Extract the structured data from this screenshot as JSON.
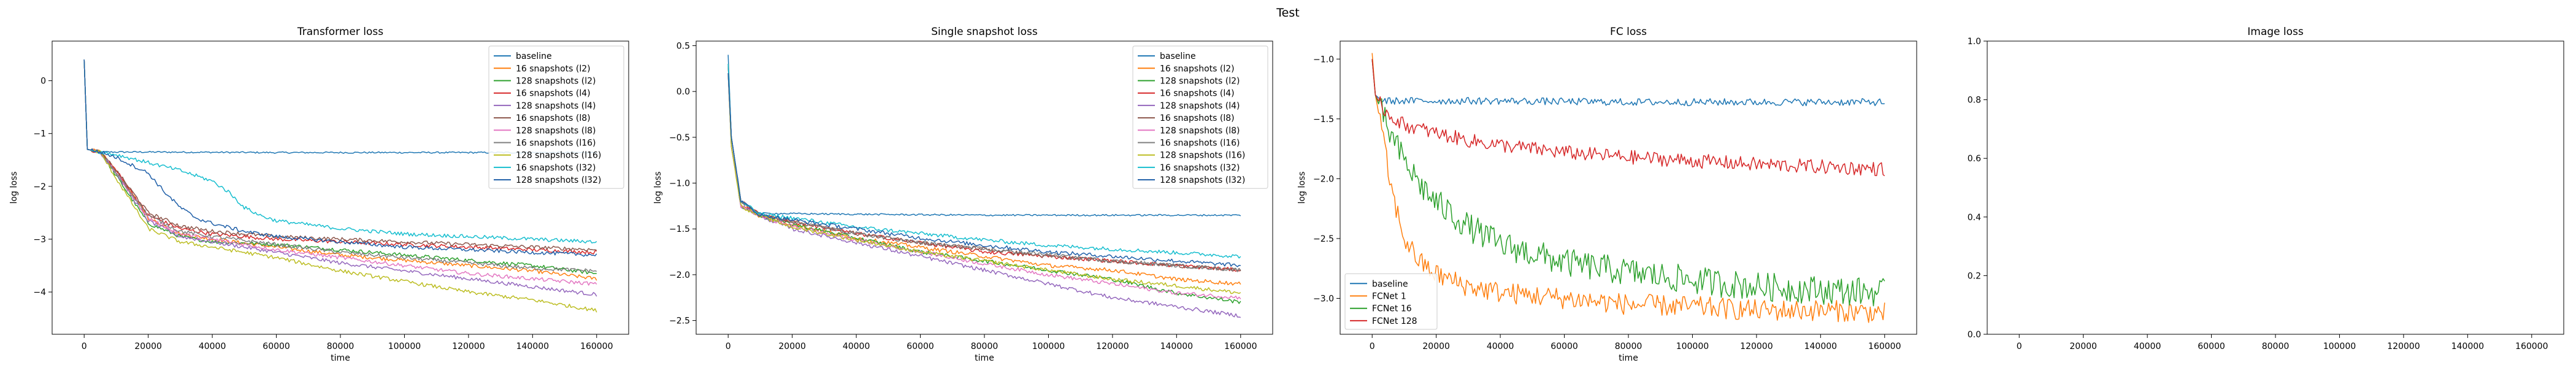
{
  "figure": {
    "title": "Test"
  },
  "colors": [
    "#1f77b4",
    "#ff7f0e",
    "#2ca02c",
    "#d62728",
    "#9467bd",
    "#8c564b",
    "#e377c2",
    "#7f7f7f",
    "#bcbd22",
    "#17becf",
    "#1f5fa8"
  ],
  "chart_data": [
    {
      "type": "line",
      "title": "Transformer loss",
      "xlabel": "time",
      "ylabel": "log loss",
      "xlim": [
        -10000,
        170000
      ],
      "ylim": [
        -4.8,
        0.75
      ],
      "xticks": [
        0,
        20000,
        40000,
        60000,
        80000,
        100000,
        120000,
        140000,
        160000
      ],
      "yticks": [
        -4,
        -3,
        -2,
        -1,
        0
      ],
      "grid": false,
      "legend": "top-right",
      "series": [
        {
          "name": "baseline",
          "x": [
            0,
            1000,
            5000,
            20000,
            60000,
            100000,
            160000
          ],
          "y": [
            0.4,
            -1.3,
            -1.35,
            -1.35,
            -1.36,
            -1.36,
            -1.36
          ]
        },
        {
          "name": "16 snapshots (l2)",
          "x": [
            0,
            1000,
            5000,
            10000,
            20000,
            30000,
            40000,
            60000,
            80000,
            100000,
            120000,
            140000,
            160000
          ],
          "y": [
            0.4,
            -1.3,
            -1.35,
            -1.7,
            -2.6,
            -2.9,
            -3.0,
            -3.15,
            -3.3,
            -3.4,
            -3.5,
            -3.6,
            -3.75
          ]
        },
        {
          "name": "128 snapshots (l2)",
          "x": [
            0,
            1000,
            5000,
            10000,
            20000,
            30000,
            40000,
            60000,
            80000,
            100000,
            120000,
            140000,
            160000
          ],
          "y": [
            0.4,
            -1.3,
            -1.35,
            -1.8,
            -2.7,
            -2.95,
            -3.05,
            -3.1,
            -3.2,
            -3.3,
            -3.4,
            -3.5,
            -3.65
          ]
        },
        {
          "name": "16 snapshots (l4)",
          "x": [
            0,
            1000,
            5000,
            10000,
            20000,
            30000,
            40000,
            60000,
            80000,
            100000,
            120000,
            140000,
            160000
          ],
          "y": [
            0.4,
            -1.3,
            -1.35,
            -1.7,
            -2.55,
            -2.8,
            -2.9,
            -3.0,
            -3.05,
            -3.1,
            -3.15,
            -3.2,
            -3.25
          ]
        },
        {
          "name": "128 snapshots (l4)",
          "x": [
            0,
            1000,
            5000,
            10000,
            20000,
            30000,
            40000,
            60000,
            80000,
            100000,
            120000,
            140000,
            160000
          ],
          "y": [
            0.4,
            -1.3,
            -1.35,
            -1.75,
            -2.65,
            -2.95,
            -3.05,
            -3.25,
            -3.45,
            -3.6,
            -3.75,
            -3.9,
            -4.05
          ]
        },
        {
          "name": "16 snapshots (l8)",
          "x": [
            0,
            1000,
            5000,
            10000,
            20000,
            30000,
            40000,
            60000,
            80000,
            100000,
            120000,
            140000,
            160000
          ],
          "y": [
            0.4,
            -1.3,
            -1.35,
            -1.7,
            -2.5,
            -2.75,
            -2.85,
            -2.95,
            -3.0,
            -3.05,
            -3.1,
            -3.15,
            -3.2
          ]
        },
        {
          "name": "128 snapshots (l8)",
          "x": [
            0,
            1000,
            5000,
            10000,
            20000,
            30000,
            40000,
            60000,
            80000,
            100000,
            120000,
            140000,
            160000
          ],
          "y": [
            0.4,
            -1.3,
            -1.35,
            -1.75,
            -2.6,
            -2.9,
            -3.0,
            -3.2,
            -3.35,
            -3.5,
            -3.65,
            -3.75,
            -3.85
          ]
        },
        {
          "name": "16 snapshots (l16)",
          "x": [
            0,
            1000,
            5000,
            10000,
            20000,
            30000,
            40000,
            60000,
            80000,
            100000,
            120000,
            140000,
            160000
          ],
          "y": [
            0.4,
            -1.3,
            -1.35,
            -1.75,
            -2.55,
            -2.85,
            -2.95,
            -3.1,
            -3.25,
            -3.35,
            -3.45,
            -3.55,
            -3.6
          ]
        },
        {
          "name": "128 snapshots (l16)",
          "x": [
            0,
            1000,
            5000,
            10000,
            20000,
            30000,
            40000,
            60000,
            80000,
            100000,
            120000,
            140000,
            160000
          ],
          "y": [
            0.4,
            -1.3,
            -1.35,
            -1.85,
            -2.8,
            -3.05,
            -3.15,
            -3.35,
            -3.6,
            -3.8,
            -4.0,
            -4.15,
            -4.35
          ]
        },
        {
          "name": "16 snapshots (l32)",
          "x": [
            0,
            1000,
            5000,
            10000,
            20000,
            30000,
            40000,
            45000,
            50000,
            55000,
            60000,
            80000,
            100000,
            120000,
            140000,
            160000
          ],
          "y": [
            0.4,
            -1.3,
            -1.35,
            -1.4,
            -1.55,
            -1.7,
            -1.9,
            -2.1,
            -2.4,
            -2.55,
            -2.65,
            -2.8,
            -2.9,
            -2.95,
            -3.0,
            -3.05
          ]
        },
        {
          "name": "128 snapshots (l32)",
          "x": [
            0,
            1000,
            5000,
            10000,
            20000,
            25000,
            30000,
            35000,
            40000,
            50000,
            60000,
            80000,
            100000,
            120000,
            140000,
            160000
          ],
          "y": [
            0.4,
            -1.3,
            -1.35,
            -1.45,
            -1.75,
            -2.1,
            -2.4,
            -2.6,
            -2.7,
            -2.85,
            -2.95,
            -3.05,
            -3.15,
            -3.2,
            -3.25,
            -3.3
          ]
        }
      ]
    },
    {
      "type": "line",
      "title": "Single snapshot loss",
      "xlabel": "time",
      "ylabel": "log loss",
      "xlim": [
        -10000,
        170000
      ],
      "ylim": [
        -2.65,
        0.55
      ],
      "xticks": [
        0,
        20000,
        40000,
        60000,
        80000,
        100000,
        120000,
        140000,
        160000
      ],
      "yticks": [
        -2.5,
        -2.0,
        -1.5,
        -1.0,
        -0.5,
        0.0,
        0.5
      ],
      "grid": false,
      "legend": "top-right",
      "series": [
        {
          "name": "baseline",
          "x": [
            0,
            1000,
            4000,
            10000,
            40000,
            80000,
            120000,
            160000
          ],
          "y": [
            0.4,
            -0.5,
            -1.2,
            -1.33,
            -1.34,
            -1.35,
            -1.35,
            -1.35
          ]
        },
        {
          "name": "16 snapshots (l2)",
          "x": [
            0,
            1000,
            4000,
            10000,
            20000,
            40000,
            60000,
            80000,
            100000,
            120000,
            140000,
            160000
          ],
          "y": [
            0.3,
            -0.6,
            -1.25,
            -1.36,
            -1.45,
            -1.6,
            -1.7,
            -1.8,
            -1.9,
            -1.95,
            -2.05,
            -2.1
          ]
        },
        {
          "name": "128 snapshots (l2)",
          "x": [
            0,
            1000,
            4000,
            10000,
            20000,
            40000,
            60000,
            80000,
            100000,
            120000,
            140000,
            160000
          ],
          "y": [
            0.2,
            -0.6,
            -1.25,
            -1.36,
            -1.45,
            -1.6,
            -1.75,
            -1.85,
            -1.95,
            -2.05,
            -2.2,
            -2.3
          ]
        },
        {
          "name": "16 snapshots (l4)",
          "x": [
            0,
            1000,
            4000,
            10000,
            20000,
            40000,
            60000,
            80000,
            100000,
            120000,
            140000,
            160000
          ],
          "y": [
            0.3,
            -0.5,
            -1.2,
            -1.35,
            -1.42,
            -1.55,
            -1.65,
            -1.75,
            -1.8,
            -1.85,
            -1.9,
            -1.95
          ]
        },
        {
          "name": "128 snapshots (l4)",
          "x": [
            0,
            1000,
            4000,
            10000,
            20000,
            40000,
            60000,
            80000,
            100000,
            120000,
            140000,
            160000
          ],
          "y": [
            0.2,
            -0.6,
            -1.25,
            -1.36,
            -1.5,
            -1.65,
            -1.8,
            -1.95,
            -2.1,
            -2.25,
            -2.35,
            -2.45
          ]
        },
        {
          "name": "16 snapshots (l8)",
          "x": [
            0,
            1000,
            4000,
            10000,
            20000,
            40000,
            60000,
            80000,
            100000,
            120000,
            140000,
            160000
          ],
          "y": [
            0.3,
            -0.5,
            -1.2,
            -1.35,
            -1.42,
            -1.55,
            -1.65,
            -1.72,
            -1.8,
            -1.85,
            -1.9,
            -1.95
          ]
        },
        {
          "name": "128 snapshots (l8)",
          "x": [
            0,
            1000,
            4000,
            10000,
            20000,
            40000,
            60000,
            80000,
            100000,
            120000,
            140000,
            160000
          ],
          "y": [
            0.2,
            -0.6,
            -1.25,
            -1.36,
            -1.47,
            -1.62,
            -1.75,
            -1.88,
            -2.0,
            -2.1,
            -2.2,
            -2.25
          ]
        },
        {
          "name": "16 snapshots (l16)",
          "x": [
            0,
            1000,
            4000,
            10000,
            20000,
            40000,
            60000,
            80000,
            100000,
            120000,
            140000,
            160000
          ],
          "y": [
            0.3,
            -0.5,
            -1.2,
            -1.35,
            -1.42,
            -1.55,
            -1.65,
            -1.72,
            -1.78,
            -1.85,
            -1.9,
            -1.95
          ]
        },
        {
          "name": "128 snapshots (l16)",
          "x": [
            0,
            1000,
            4000,
            10000,
            20000,
            40000,
            60000,
            80000,
            100000,
            120000,
            140000,
            160000
          ],
          "y": [
            0.2,
            -0.6,
            -1.25,
            -1.36,
            -1.48,
            -1.62,
            -1.75,
            -1.85,
            -1.95,
            -2.05,
            -2.12,
            -2.2
          ]
        },
        {
          "name": "16 snapshots (l32)",
          "x": [
            0,
            1000,
            4000,
            10000,
            20000,
            40000,
            60000,
            80000,
            100000,
            120000,
            140000,
            160000
          ],
          "y": [
            0.3,
            -0.5,
            -1.2,
            -1.34,
            -1.38,
            -1.48,
            -1.55,
            -1.62,
            -1.68,
            -1.72,
            -1.76,
            -1.8
          ]
        },
        {
          "name": "128 snapshots (l32)",
          "x": [
            0,
            1000,
            4000,
            10000,
            20000,
            40000,
            60000,
            80000,
            100000,
            120000,
            140000,
            160000
          ],
          "y": [
            0.2,
            -0.5,
            -1.2,
            -1.35,
            -1.4,
            -1.5,
            -1.6,
            -1.68,
            -1.75,
            -1.8,
            -1.85,
            -1.9
          ]
        }
      ]
    },
    {
      "type": "line",
      "title": "FC loss",
      "xlabel": "time",
      "ylabel": "log loss",
      "xlim": [
        -10000,
        170000
      ],
      "ylim": [
        -3.3,
        -0.85
      ],
      "xticks": [
        0,
        20000,
        40000,
        60000,
        80000,
        100000,
        120000,
        140000,
        160000
      ],
      "yticks": [
        -3.0,
        -2.5,
        -2.0,
        -1.5,
        -1.0
      ],
      "grid": false,
      "legend": "bottom-left",
      "series": [
        {
          "name": "baseline",
          "x": [
            0,
            1000,
            3000,
            10000,
            40000,
            80000,
            120000,
            160000
          ],
          "y": [
            -1.0,
            -1.3,
            -1.35,
            -1.35,
            -1.35,
            -1.36,
            -1.36,
            -1.36
          ]
        },
        {
          "name": "FCNet 1",
          "x": [
            0,
            1000,
            3000,
            6000,
            10000,
            15000,
            20000,
            30000,
            40000,
            60000,
            80000,
            100000,
            120000,
            140000,
            160000
          ],
          "y": [
            -0.95,
            -1.3,
            -1.6,
            -2.1,
            -2.5,
            -2.7,
            -2.8,
            -2.9,
            -2.95,
            -3.0,
            -3.05,
            -3.07,
            -3.1,
            -3.1,
            -3.12
          ]
        },
        {
          "name": "FCNet 16",
          "x": [
            0,
            1000,
            3000,
            6000,
            10000,
            15000,
            20000,
            30000,
            40000,
            60000,
            80000,
            100000,
            120000,
            140000,
            160000
          ],
          "y": [
            -1.0,
            -1.3,
            -1.45,
            -1.65,
            -1.85,
            -2.05,
            -2.2,
            -2.4,
            -2.55,
            -2.7,
            -2.78,
            -2.85,
            -2.9,
            -2.93,
            -2.95
          ]
        },
        {
          "name": "FCNet 128",
          "x": [
            0,
            1000,
            3000,
            6000,
            10000,
            20000,
            30000,
            40000,
            60000,
            80000,
            100000,
            120000,
            140000,
            160000
          ],
          "y": [
            -1.0,
            -1.3,
            -1.4,
            -1.48,
            -1.55,
            -1.62,
            -1.68,
            -1.72,
            -1.78,
            -1.82,
            -1.85,
            -1.88,
            -1.9,
            -1.92
          ]
        }
      ]
    },
    {
      "type": "line",
      "title": "Image loss",
      "xlabel": "",
      "ylabel": "",
      "xlim": [
        -10000,
        170000
      ],
      "ylim": [
        0.0,
        1.0
      ],
      "xticks": [
        0,
        20000,
        40000,
        60000,
        80000,
        100000,
        120000,
        140000,
        160000
      ],
      "yticks": [
        0.0,
        0.2,
        0.4,
        0.6,
        0.8,
        1.0
      ],
      "grid": false,
      "legend": "none",
      "series": []
    }
  ]
}
